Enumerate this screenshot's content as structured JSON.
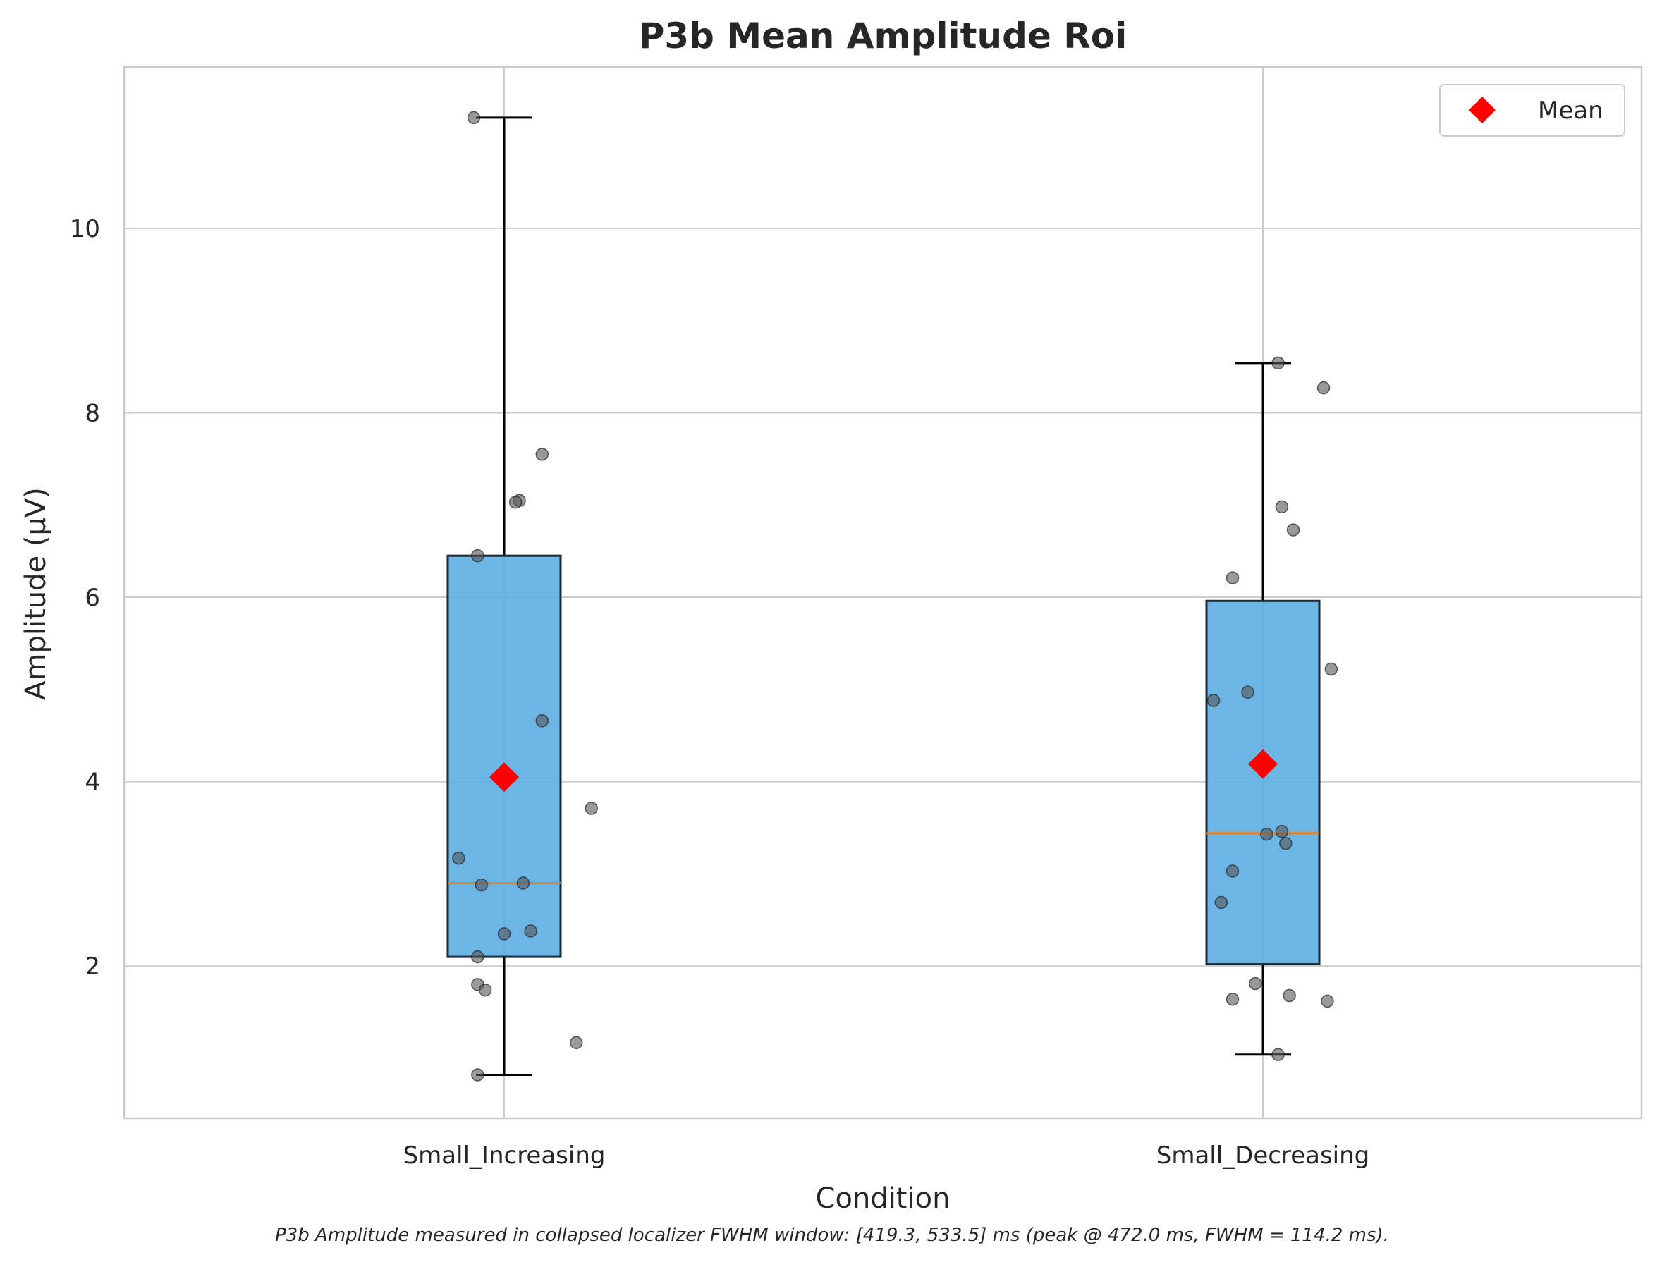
{
  "chart_data": {
    "type": "box",
    "title": "P3b Mean Amplitude Roi",
    "xlabel": "Condition",
    "ylabel": "Amplitude (μV)",
    "caption": "P3b Amplitude measured in collapsed localizer FWHM window: [419.3, 533.5] ms (peak @ 472.0 ms, FWHM = 114.2 ms).",
    "ylim": [
      0.35,
      11.75
    ],
    "yticks": [
      2,
      4,
      6,
      8,
      10
    ],
    "grid": true,
    "legend": {
      "position": "top-right",
      "entries": [
        {
          "label": "Mean",
          "marker": "diamond",
          "color": "#ff0000"
        }
      ]
    },
    "colors": {
      "box": "#5dade2",
      "median": "#e67e22",
      "mean": "#ff0000",
      "points": "#555555",
      "grid": "#cccccc"
    },
    "categories": [
      "Small_Increasing",
      "Small_Decreasing"
    ],
    "boxes": [
      {
        "category": "Small_Increasing",
        "whisker_low": 0.82,
        "q1": 2.1,
        "median": 2.9,
        "q3": 6.45,
        "whisker_high": 11.2,
        "mean": 4.05,
        "points": [
          [
            -0.04,
            11.2
          ],
          [
            0.05,
            7.55
          ],
          [
            0.02,
            7.05
          ],
          [
            0.015,
            7.03
          ],
          [
            -0.035,
            6.45
          ],
          [
            0.05,
            4.66
          ],
          [
            0.115,
            3.71
          ],
          [
            -0.06,
            3.17
          ],
          [
            -0.03,
            2.88
          ],
          [
            0.025,
            2.9
          ],
          [
            0.035,
            2.38
          ],
          [
            0.0,
            2.35
          ],
          [
            -0.035,
            2.1
          ],
          [
            -0.035,
            1.8
          ],
          [
            -0.025,
            1.74
          ],
          [
            0.095,
            1.17
          ],
          [
            -0.035,
            0.82
          ]
        ]
      },
      {
        "category": "Small_Decreasing",
        "whisker_low": 1.04,
        "q1": 2.02,
        "median": 3.44,
        "q3": 5.96,
        "whisker_high": 8.54,
        "mean": 4.19,
        "points": [
          [
            0.02,
            8.54
          ],
          [
            0.08,
            8.27
          ],
          [
            0.025,
            6.98
          ],
          [
            0.04,
            6.73
          ],
          [
            -0.04,
            6.21
          ],
          [
            0.09,
            5.22
          ],
          [
            -0.02,
            4.97
          ],
          [
            -0.065,
            4.88
          ],
          [
            0.025,
            3.46
          ],
          [
            0.005,
            3.43
          ],
          [
            0.03,
            3.33
          ],
          [
            -0.04,
            3.03
          ],
          [
            -0.055,
            2.69
          ],
          [
            -0.01,
            1.81
          ],
          [
            0.035,
            1.68
          ],
          [
            -0.04,
            1.64
          ],
          [
            0.085,
            1.62
          ],
          [
            0.02,
            1.04
          ]
        ]
      }
    ]
  }
}
